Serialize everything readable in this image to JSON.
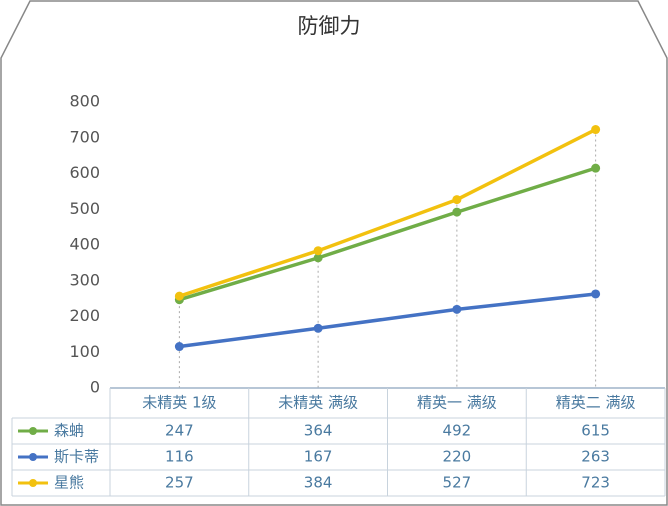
{
  "chart_data": {
    "type": "line",
    "title": "防御力",
    "categories": [
      "未精英 1级",
      "未精英 满级",
      "精英一 满级",
      "精英二 满级"
    ],
    "series": [
      {
        "name": "森蚺",
        "color": "#70ad47",
        "values": [
          247,
          364,
          492,
          615
        ]
      },
      {
        "name": "斯卡蒂",
        "color": "#4472c4",
        "values": [
          116,
          167,
          220,
          263
        ]
      },
      {
        "name": "星熊",
        "color": "#f2c10f",
        "values": [
          257,
          384,
          527,
          723
        ]
      }
    ],
    "ylim": [
      0,
      800
    ],
    "yticks": [
      0,
      100,
      200,
      300,
      400,
      500,
      600,
      700,
      800
    ]
  }
}
